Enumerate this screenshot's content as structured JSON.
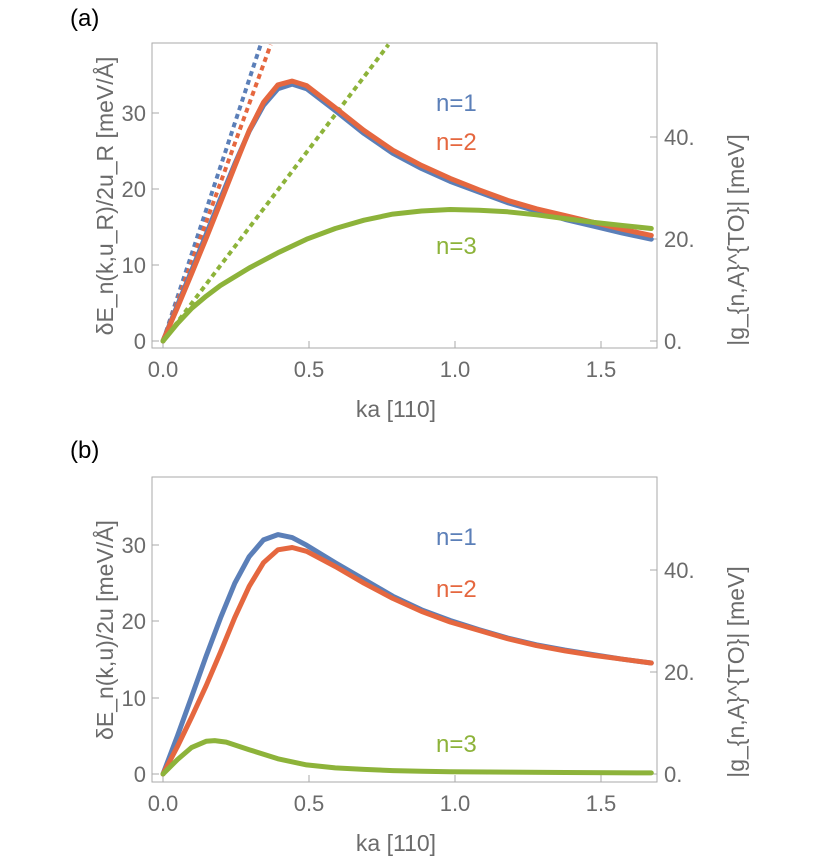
{
  "colors": {
    "n1": "#5b7fb8",
    "n2": "#e5673f",
    "n3": "#8db33a",
    "axis": "#aaaaaa",
    "text": "#6b6b6b"
  },
  "chart_data": [
    {
      "type": "line",
      "panel_label": "(a)",
      "xlabel": "ka [110]",
      "ylabel": "δE_n(k,u_R)/2u_R [meV/Å]",
      "ylabel_right": "|g_{n,A}^{TO}| [meV]",
      "xlim": [
        0,
        1.72
      ],
      "ylim": [
        -0.5,
        39
      ],
      "x_ticks": [
        "0.0",
        "0.5",
        "1.0",
        "1.5"
      ],
      "y_ticks": [
        "0",
        "10",
        "20",
        "30"
      ],
      "y_ticks_right": [
        "0.",
        "20.",
        "40."
      ],
      "legend": [
        "n=1",
        "n=2",
        "n=3"
      ],
      "series": [
        {
          "name": "n=1",
          "style": "solid",
          "x": [
            0,
            0.05,
            0.1,
            0.15,
            0.2,
            0.25,
            0.3,
            0.35,
            0.4,
            0.45,
            0.5,
            0.6,
            0.7,
            0.8,
            0.9,
            1.0,
            1.1,
            1.2,
            1.3,
            1.4,
            1.5,
            1.6,
            1.7
          ],
          "y": [
            0,
            4.7,
            9.3,
            14.0,
            18.7,
            23.3,
            27.6,
            31.0,
            33.2,
            33.8,
            33.2,
            30.3,
            27.3,
            24.7,
            22.7,
            21.0,
            19.6,
            18.2,
            17.1,
            16.0,
            15.1,
            14.2,
            13.4
          ]
        },
        {
          "name": "n=2",
          "style": "solid",
          "x": [
            0,
            0.05,
            0.1,
            0.15,
            0.2,
            0.25,
            0.3,
            0.35,
            0.4,
            0.45,
            0.5,
            0.6,
            0.7,
            0.8,
            0.9,
            1.0,
            1.1,
            1.2,
            1.3,
            1.4,
            1.5,
            1.6,
            1.7
          ],
          "y": [
            0,
            4.4,
            8.9,
            13.5,
            18.2,
            23.0,
            27.7,
            31.4,
            33.7,
            34.2,
            33.6,
            30.7,
            27.7,
            25.1,
            23.1,
            21.4,
            19.9,
            18.5,
            17.4,
            16.5,
            15.6,
            14.7,
            13.9
          ]
        },
        {
          "name": "n=3",
          "style": "solid",
          "x": [
            0,
            0.05,
            0.1,
            0.15,
            0.2,
            0.3,
            0.4,
            0.5,
            0.6,
            0.7,
            0.8,
            0.9,
            1.0,
            1.1,
            1.2,
            1.3,
            1.4,
            1.5,
            1.6,
            1.7
          ],
          "y": [
            0,
            2.3,
            4.3,
            5.9,
            7.3,
            9.6,
            11.6,
            13.4,
            14.8,
            15.9,
            16.7,
            17.1,
            17.3,
            17.2,
            17.0,
            16.6,
            16.1,
            15.6,
            15.2,
            14.8
          ]
        },
        {
          "name": "n=1 slope",
          "style": "dotted",
          "x": [
            0,
            0.34
          ],
          "y": [
            0,
            39
          ]
        },
        {
          "name": "n=2 slope",
          "style": "dotted",
          "x": [
            0,
            0.375
          ],
          "y": [
            0,
            39
          ]
        },
        {
          "name": "n=3 slope",
          "style": "dotted",
          "x": [
            0,
            0.785
          ],
          "y": [
            0,
            39
          ]
        }
      ]
    },
    {
      "type": "line",
      "panel_label": "(b)",
      "xlabel": "ka [110]",
      "ylabel": "δE_n(k,u)/2u [meV/Å]",
      "ylabel_right": "|g_{n,A}^{TO}| [meV]",
      "xlim": [
        0,
        1.72
      ],
      "ylim": [
        -0.5,
        39
      ],
      "x_ticks": [
        "0.0",
        "0.5",
        "1.0",
        "1.5"
      ],
      "y_ticks": [
        "0",
        "10",
        "20",
        "30"
      ],
      "y_ticks_right": [
        "0.",
        "20.",
        "40."
      ],
      "legend": [
        "n=1",
        "n=2",
        "n=3"
      ],
      "series": [
        {
          "name": "n=1",
          "style": "solid",
          "x": [
            0,
            0.05,
            0.1,
            0.15,
            0.2,
            0.25,
            0.3,
            0.35,
            0.4,
            0.45,
            0.5,
            0.6,
            0.7,
            0.8,
            0.9,
            1.0,
            1.1,
            1.2,
            1.3,
            1.4,
            1.5,
            1.6,
            1.7
          ],
          "y": [
            0,
            5.0,
            10.2,
            15.5,
            20.5,
            25.1,
            28.6,
            30.8,
            31.5,
            31.1,
            30.1,
            27.8,
            25.6,
            23.4,
            21.6,
            20.2,
            19.0,
            17.9,
            17.0,
            16.3,
            15.7,
            15.1,
            14.6
          ]
        },
        {
          "name": "n=2",
          "style": "solid",
          "x": [
            0,
            0.05,
            0.1,
            0.15,
            0.2,
            0.25,
            0.3,
            0.35,
            0.4,
            0.45,
            0.5,
            0.6,
            0.7,
            0.8,
            0.9,
            1.0,
            1.1,
            1.2,
            1.3,
            1.4,
            1.5,
            1.6,
            1.7
          ],
          "y": [
            0,
            3.6,
            7.5,
            11.6,
            16.0,
            20.6,
            24.7,
            27.8,
            29.5,
            29.8,
            29.3,
            27.3,
            25.1,
            23.1,
            21.4,
            20.0,
            18.9,
            17.8,
            16.9,
            16.2,
            15.6,
            15.1,
            14.6
          ]
        },
        {
          "name": "n=3",
          "style": "solid",
          "x": [
            0,
            0.05,
            0.1,
            0.15,
            0.18,
            0.22,
            0.3,
            0.4,
            0.5,
            0.6,
            0.7,
            0.8,
            0.9,
            1.0,
            1.2,
            1.4,
            1.7
          ],
          "y": [
            0,
            1.9,
            3.5,
            4.3,
            4.4,
            4.2,
            3.2,
            2.0,
            1.2,
            0.8,
            0.6,
            0.45,
            0.35,
            0.3,
            0.25,
            0.2,
            0.15
          ]
        }
      ]
    }
  ]
}
